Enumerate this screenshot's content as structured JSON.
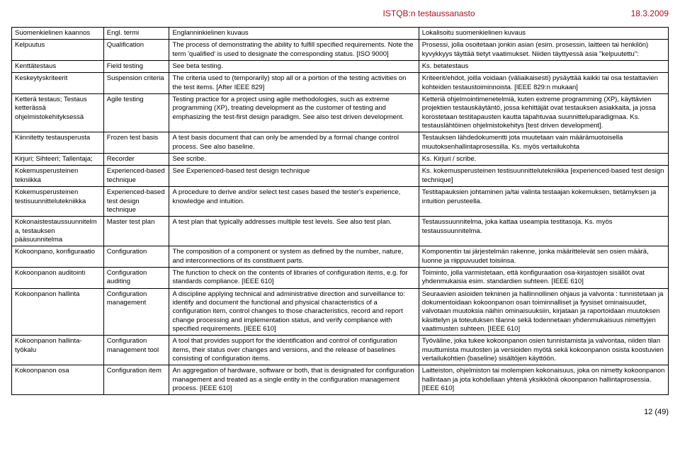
{
  "header": {
    "title": "ISTQB:n testaussanasto",
    "date": "18.3.2009"
  },
  "columns": {
    "c1": "Suomenkielinen kaannos",
    "c2": "Engl. termi",
    "c3": "Englanninkielinen kuvaus",
    "c4": "Lokalisoitu suomenkielinen kuvaus"
  },
  "rows": [
    {
      "c1": "Kelpuutus",
      "c2": "Qualification",
      "c3": "The process of demonstrating the ability to fulfill specified requirements. Note the term 'qualified' is used to designate the corresponding status. [ISO 9000]",
      "c4": "Prosessi, jolla osoitetaan jonkin asian (esim. prosessin, laitteen tai henkilön) kyvykkyys täyttää tietyt vaatimukset. Niiden täyttyessä asia \"kelpuutettu\":"
    },
    {
      "c1": "Kenttätestaus",
      "c2": "Field testing",
      "c3": "See beta testing.",
      "c4": "Ks. betatestaus"
    },
    {
      "c1": "Keskeytyskriteerit",
      "c2": "Suspension criteria",
      "c3": "The criteria used to (temporarily) stop all or a portion of the testing activities on the test items. [After IEEE 829]",
      "c4": "Kriteerit/ehdot, joilla voidaan (väliaikaisesti) pysäyttää kaikki tai osa testattavien kohteiden testaustoiminnoista. [IEEE 829:n mukaan]"
    },
    {
      "c1": "Ketterä testaus; Testaus ketterässä ohjelmistokehityksessä",
      "c2": "Agile testing",
      "c3": "Testing practice for a project using agile methodologies, such as extreme programming (XP), treating development as the customer of testing and emphasizing the test-first design paradigm. See also test driven development.",
      "c4": "Ketteriä ohjelmointimenetelmiä, kuten extreme programming (XP), käyttävien projektien testauskäytäntö, jossa kehittäjät ovat testauksen asiakkaita, ja jossa korostetaan testitapausten kautta tapahtuvaa suunnitteluparadigmaa. Ks. testauslähtöinen ohjelmistokehitys [test driven development]."
    },
    {
      "c1": "Kiinnitetty testausperusta",
      "c2": "Frozen test basis",
      "c3": "A test basis document that can only be amended by a formal change control process. See also baseline.",
      "c4": "Testauksen lähdedokumentti jota muutetaan vain määrämuotoisella muutoksenhallintaprosessilla. Ks. myös vertailukohta"
    },
    {
      "c1": "Kirjuri; Sihteeri; Tallentaja;",
      "c2": "Recorder",
      "c3": "See scribe.",
      "c4": "Ks. Kirjuri / scribe."
    },
    {
      "c1": "Kokemusperusteinen tekniikka",
      "c2": "Experienced-based technique",
      "c3": "See Experienced-based test design technique",
      "c4": "Ks. kokemusperusteinen testisuunnittelutekniikka [experienced-based test design technique]"
    },
    {
      "c1": "Kokemusperusteinen testisuunnittelutekniikka",
      "c2": "Experienced-based test design technique",
      "c3": "A procedure to derive and/or select test cases based the tester's experience, knowledge and intuition.",
      "c4": "Testitapauksien johtaminen ja/tai valinta testaajan kokemuksen, tietämyksen ja intuition perusteella."
    },
    {
      "c1": "Kokonaistestaussuunnitelma, testauksen pääsuunnitelma",
      "c2": "Master test plan",
      "c3": "A test plan that typically addresses multiple test levels. See also test plan.",
      "c4": "Testaussuunnitelma, joka kattaa useampia testitasoja. Ks. myös testaussuunnitelma."
    },
    {
      "c1": "Kokoonpano, konfiguraatio",
      "c2": "Configuration",
      "c3": "The composition of a component or system as defined by the number, nature, and interconnections of its constituent parts.",
      "c4": "Komponentin tai järjestelmän rakenne, jonka määrittelevät sen osien määrä, luonne ja riippuvuudet toisiinsa."
    },
    {
      "c1": "Kokoonpanon auditointi",
      "c2": "Configuration auditing",
      "c3": "The function to check on the contents of libraries of configuration items, e.g. for standards compliance. [IEEE 610]",
      "c4": "Toiminto, jolla varmistetaan, että konfiguraation osa-kirjastojen sisällöt ovat yhdenmukaisia esim. standardien suhteen. [IEEE 610]"
    },
    {
      "c1": "Kokoonpanon hallinta",
      "c2": "Configuration management",
      "c3": "A discipline applying technical and administrative direction and surveillance to: identify and document the functional and physical characteristics of a configuration item, control changes to those characteristics, record and report change processing and implementation status, and verify compliance with specified requirements. [IEEE 610]",
      "c4": "Seuraavien asioiden tekninen ja hallinnollinen ohjaus ja valvonta : tunnistetaan ja dokumentoidaan kokoonpanon osan toiminnalliset ja fyysiset ominaisuudet, valvotaan muutoksia näihin ominaisuuksiin, kirjataan ja raportoidaan muutoksen käsittelyn ja toteutuksen tilanne sekä todennetaan yhdenmukaisuus nimettyjen vaatimusten suhteen. [IEEE 610]"
    },
    {
      "c1": "Kokoonpanon hallinta-työkalu",
      "c2": "Configuration management tool",
      "c3": "A tool that provides support for the identification and control of configuration items, their status over changes and versions, and the release of baselines consisting of configuration items.",
      "c4": "Työväline, joka tukee kokoonpanon osien tunnistamista ja valvontaa, niiden tilan muuttumista muutosten ja versioiden myötä sekä kokoonpanon osista koostuvien vertailukohtien (baseline) sisältöjen käyttöön."
    },
    {
      "c1": "Kokoonpanon osa",
      "c2": "Configuration item",
      "c3": "An aggregation of hardware, software or both, that is designated for configuration management and treated as a single entity in the configuration management process. [IEEE 610]",
      "c4": "Laitteiston, ohjelmiston tai molempien kokonaisuus, joka on nimetty kokoonpanon hallintaan ja jota kohdellaan yhtenä yksikkönä okoonpanon hallintaprosessia. [IEEE 610]"
    }
  ],
  "footer": {
    "page": "12 (49)"
  }
}
